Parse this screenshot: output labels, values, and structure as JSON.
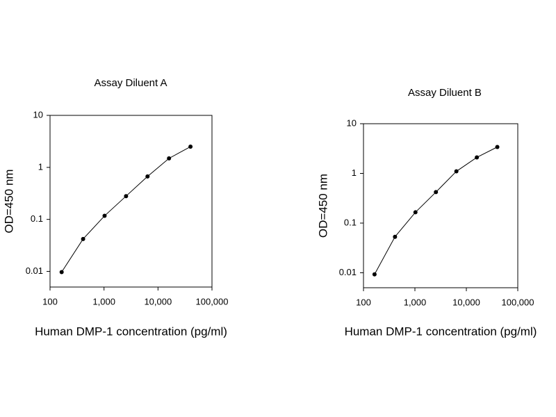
{
  "chart_data": [
    {
      "type": "line",
      "title": "Assay Diluent A",
      "x_label": "Human DMP-1 concentration (pg/ml)",
      "y_label": "OD=450 nm",
      "xscale": "log",
      "yscale": "log",
      "color": "#000000",
      "x": [
        164,
        410,
        1024,
        2560,
        6400,
        16000,
        40000
      ],
      "values": [
        0.0097,
        0.042,
        0.117,
        0.28,
        0.67,
        1.49,
        2.5
      ],
      "xlim": [
        100,
        100000
      ],
      "ylim": [
        0.005,
        10
      ],
      "xticks": [
        100,
        {
          "value": 1000,
          "label": "1,000"
        },
        {
          "value": 10000,
          "label": "10,000"
        },
        {
          "value": 100000,
          "label": "100,000"
        }
      ],
      "yticks": [
        0.01,
        0.1,
        1,
        10
      ]
    },
    {
      "type": "line",
      "title": "Assay Diluent B",
      "x_label": "Human DMP-1 concentration (pg/ml)",
      "y_label": "OD=450 nm",
      "xscale": "log",
      "yscale": "log",
      "color": "#000000",
      "x": [
        164,
        410,
        1024,
        2560,
        6400,
        16000,
        40000
      ],
      "values": [
        0.0093,
        0.053,
        0.165,
        0.42,
        1.1,
        2.1,
        3.4
      ],
      "xlim": [
        100,
        100000
      ],
      "ylim": [
        0.005,
        10
      ],
      "xticks": [
        100,
        {
          "value": 1000,
          "label": "1,000"
        },
        {
          "value": 10000,
          "label": "10,000"
        },
        {
          "value": 100000,
          "label": "100,000"
        }
      ],
      "yticks": [
        0.01,
        0.1,
        1,
        10
      ]
    }
  ]
}
